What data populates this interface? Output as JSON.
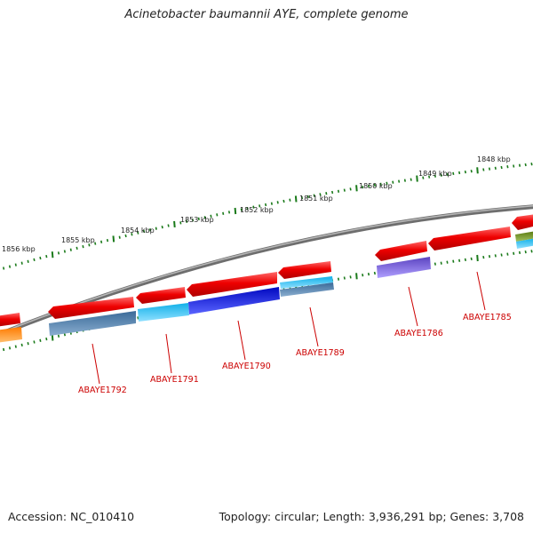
{
  "title": "Acinetobacter baumannii AYE, complete genome",
  "footer": {
    "accession": "Accession: NC_010410",
    "summary": "Topology: circular; Length: 3,936,291 bp; Genes: 3,708"
  },
  "scale_labels": [
    "1856 kbp",
    "1855 kbp",
    "1854 kbp",
    "1853 kbp",
    "1852 kbp",
    "1851 kbp",
    "1850 kbp",
    "1849 kbp",
    "1848 kbp"
  ],
  "gene_labels": [
    "ABAYE1792",
    "ABAYE1791",
    "ABAYE1790",
    "ABAYE1789",
    "ABAYE1786",
    "ABAYE1785"
  ],
  "colors": {
    "backbone": "#888888",
    "ticks": "#1a7a1a",
    "forward_genes": "#ee0000",
    "gene_label": "#cc0000",
    "steelblue": "#4a7aa8",
    "cyan": "#18c0f0",
    "blue": "#0a14d8",
    "purple": "#6a52d0",
    "orange": "#ff8c10",
    "olive": "#6a8a20"
  }
}
